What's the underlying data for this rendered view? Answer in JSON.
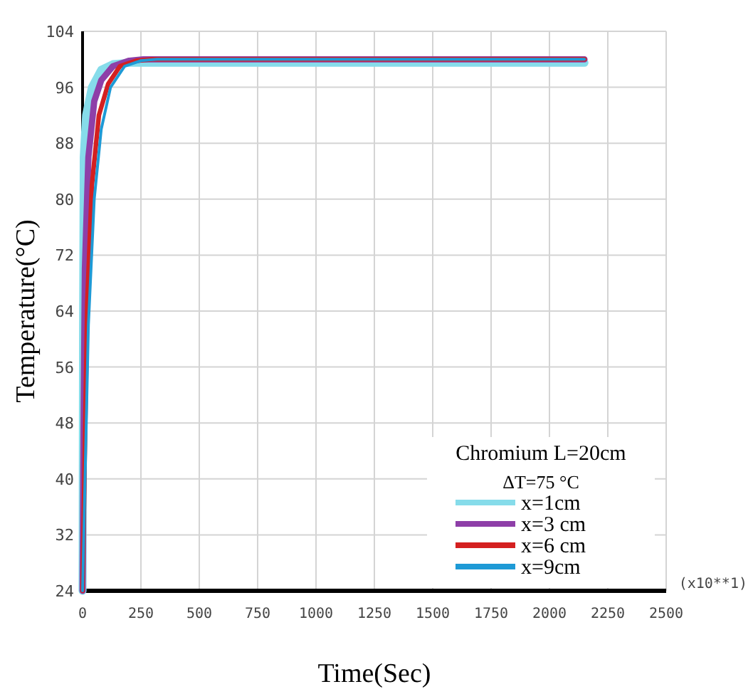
{
  "chart_data": {
    "type": "line",
    "xlabel": "Time(Sec)",
    "ylabel": "Temperature(°C)",
    "legend_title": "Chromium  L=20cm\nΔT=75 °C",
    "annotations": [
      "(x10**1)"
    ],
    "xlim": [
      0,
      2500
    ],
    "xticks": [
      0,
      250,
      500,
      750,
      1000,
      1250,
      1500,
      1750,
      2000,
      2250,
      2500
    ],
    "ylim": [
      24,
      104
    ],
    "yticks": [
      24,
      32,
      40,
      48,
      56,
      64,
      72,
      80,
      88,
      96,
      104
    ],
    "grid": true,
    "legend": "bottom right",
    "marker": "none",
    "line_style": "solid",
    "series": [
      {
        "name": "x=1cm",
        "color": "#86dcea",
        "x": [
          0,
          2,
          5,
          15,
          40,
          80,
          130,
          200,
          2150
        ],
        "values": [
          24,
          60,
          86,
          92,
          96,
          98.5,
          99.3,
          99.5,
          99.5
        ]
      },
      {
        "name": "x=3 cm",
        "color": "#8e3fa8",
        "x": [
          0,
          5,
          10,
          25,
          50,
          80,
          130,
          200,
          260,
          2150
        ],
        "values": [
          24,
          50,
          70,
          86,
          94,
          97,
          99,
          99.8,
          100,
          100
        ]
      },
      {
        "name": "x=6 cm",
        "color": "#d42020",
        "x": [
          0,
          10,
          20,
          40,
          70,
          110,
          160,
          230,
          300,
          2150
        ],
        "values": [
          24,
          45,
          65,
          82,
          92,
          96.5,
          99,
          99.8,
          100,
          100
        ]
      },
      {
        "name": "x=9cm",
        "color": "#1e9ad6",
        "x": [
          0,
          12,
          25,
          50,
          80,
          120,
          180,
          250,
          320,
          2150
        ],
        "values": [
          24,
          42,
          62,
          80,
          90,
          96,
          99,
          99.8,
          100,
          100
        ]
      }
    ]
  }
}
